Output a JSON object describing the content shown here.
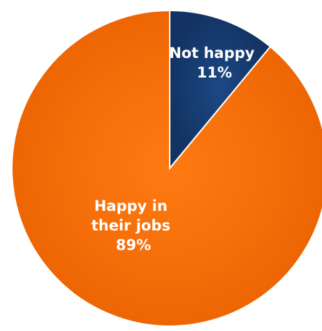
{
  "chart_data": {
    "type": "pie",
    "title": "",
    "start_angle_deg": 0,
    "direction": "clockwise",
    "slices": [
      {
        "label_lines": [
          "Not happy"
        ],
        "value": 11,
        "display": "11%",
        "color": "#173d73"
      },
      {
        "label_lines": [
          "Happy in",
          "their jobs"
        ],
        "value": 89,
        "display": "89%",
        "color": "#f36d0a"
      }
    ]
  }
}
